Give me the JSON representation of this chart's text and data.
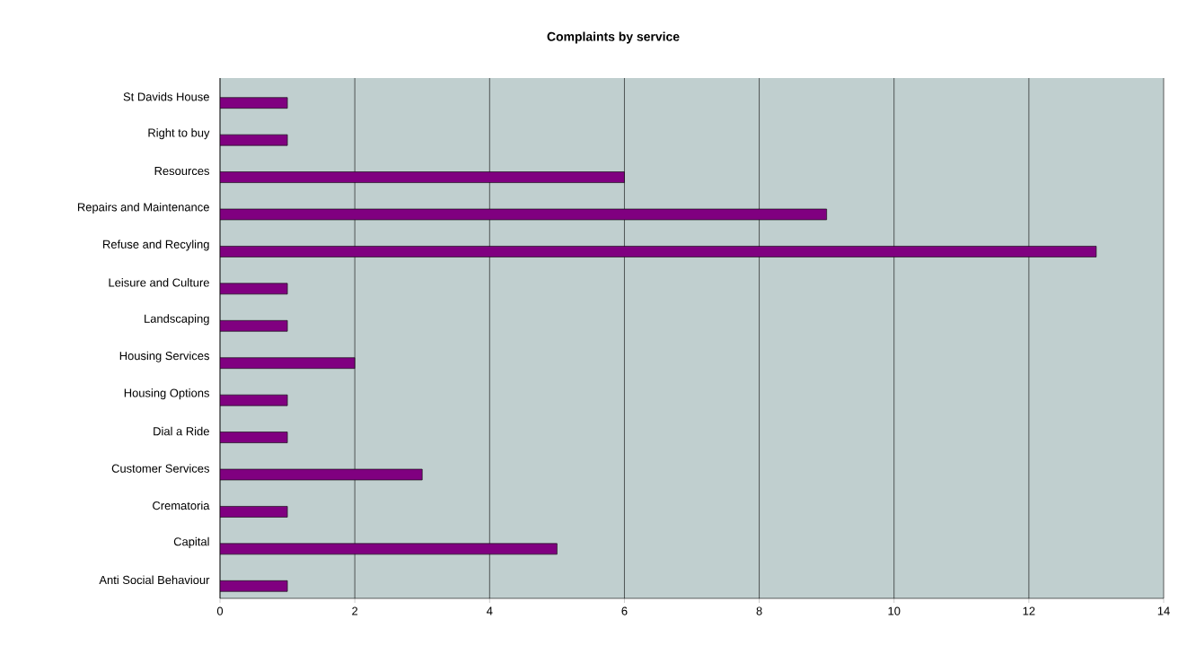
{
  "chart_data": {
    "type": "bar",
    "orientation": "horizontal",
    "title": "Complaints by service",
    "categories": [
      "St Davids House",
      "Right to buy",
      "Resources",
      "Repairs and Maintenance",
      "Refuse and Recyling",
      "Leisure and Culture",
      "Landscaping",
      "Housing Services",
      "Housing Options",
      "Dial a Ride",
      "Customer Services",
      "Crematoria",
      "Capital",
      "Anti Social Behaviour"
    ],
    "values": [
      1,
      1,
      6,
      9,
      13,
      1,
      1,
      2,
      1,
      1,
      3,
      1,
      5,
      1
    ],
    "color": "#800080",
    "xlim": [
      0,
      14
    ],
    "xticks": [
      0,
      2,
      4,
      6,
      8,
      10,
      12,
      14
    ],
    "grid": "x"
  }
}
